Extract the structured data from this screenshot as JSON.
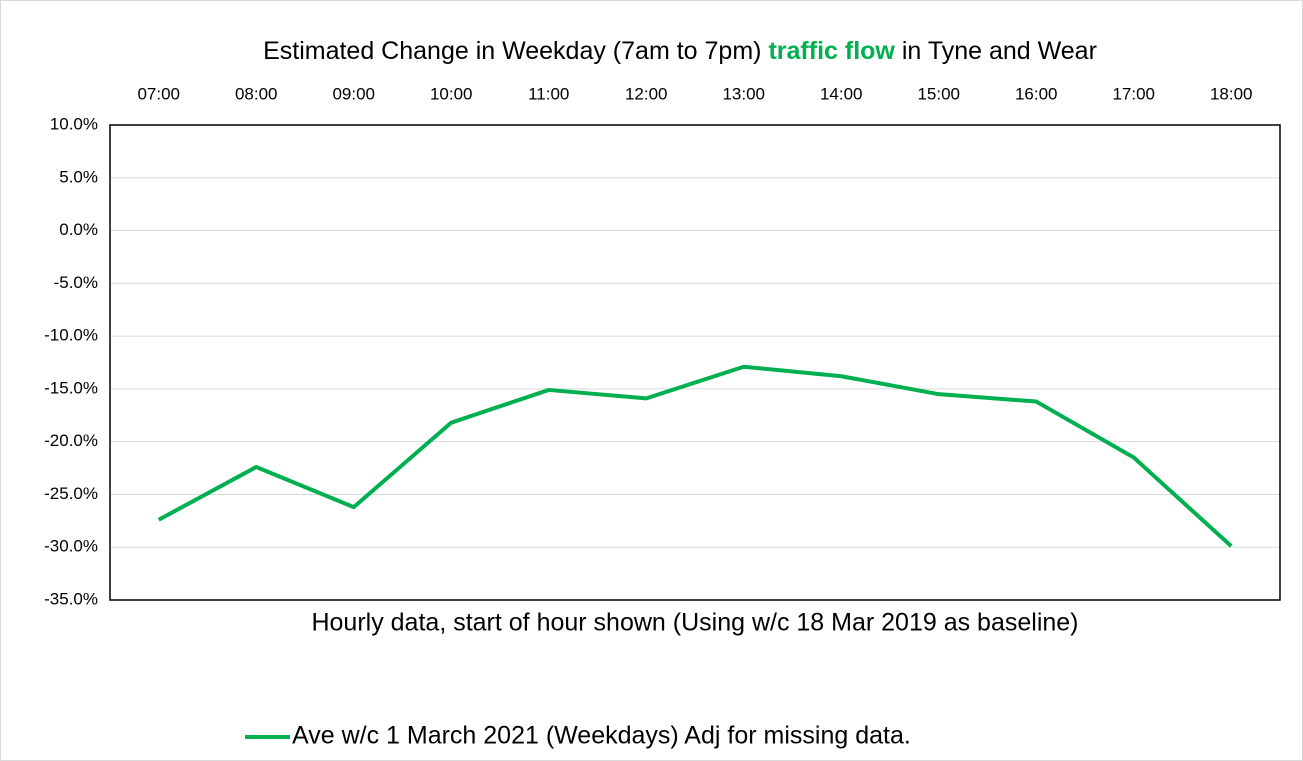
{
  "chart_data": {
    "type": "line",
    "title": [
      "Estimated Change in Weekday (7am to 7pm)",
      "traffic flow",
      "in Tyne and Wear"
    ],
    "x_label": "Hourly data, start of hour shown (Using w/c 18 Mar 2019 as baseline)",
    "categories": [
      "07:00",
      "08:00",
      "09:00",
      "10:00",
      "11:00",
      "12:00",
      "13:00",
      "14:00",
      "15:00",
      "16:00",
      "17:00",
      "18:00"
    ],
    "series": [
      {
        "name": "Ave w/c 1 March 2021 (Weekdays) Adj for missing data.",
        "color": "#00b050",
        "values": [
          -27.4,
          -22.4,
          -26.2,
          -18.2,
          -15.1,
          -15.9,
          -12.9,
          -13.8,
          -15.5,
          -16.2,
          -21.5,
          -29.9
        ]
      }
    ],
    "ylim": [
      -35,
      10
    ],
    "yticks": [
      {
        "value": -35,
        "label": "-35.0%"
      },
      {
        "value": -30,
        "label": "-30.0%"
      },
      {
        "value": -25,
        "label": "-25.0%"
      },
      {
        "value": -20,
        "label": "-20.0%"
      },
      {
        "value": -15,
        "label": "-15.0%"
      },
      {
        "value": -10,
        "label": "-10.0%"
      },
      {
        "value": -5,
        "label": "-5.0%"
      },
      {
        "value": 0,
        "label": "0.0%"
      },
      {
        "value": 5,
        "label": "5.0%"
      },
      {
        "value": 10,
        "label": "10.0%"
      }
    ],
    "grid": true,
    "legend": "bottom"
  }
}
